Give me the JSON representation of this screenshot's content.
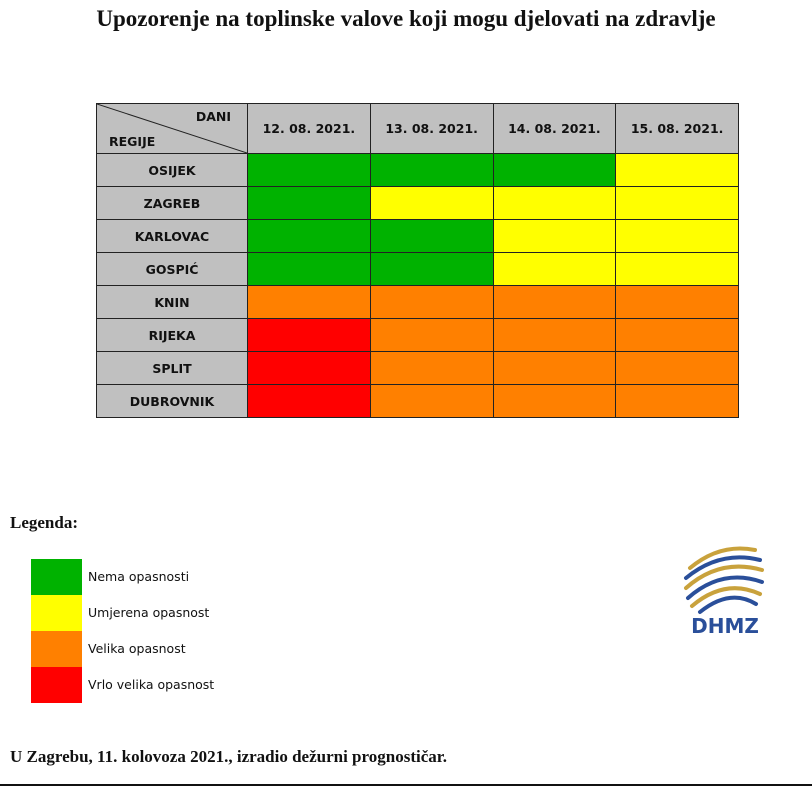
{
  "title": "Upozorenje na toplinske valove koji mogu djelovati na zdravlje",
  "table": {
    "corner_top": "DANI",
    "corner_bottom": "REGIJE",
    "columns": [
      "12. 08. 2021.",
      "13. 08. 2021.",
      "14. 08. 2021.",
      "15. 08. 2021."
    ],
    "rows": [
      {
        "region": "OSIJEK",
        "levels": [
          0,
          0,
          0,
          1
        ]
      },
      {
        "region": "ZAGREB",
        "levels": [
          0,
          1,
          1,
          1
        ]
      },
      {
        "region": "KARLOVAC",
        "levels": [
          0,
          0,
          1,
          1
        ]
      },
      {
        "region": "GOSPIĆ",
        "levels": [
          0,
          0,
          1,
          1
        ]
      },
      {
        "region": "KNIN",
        "levels": [
          2,
          2,
          2,
          2
        ]
      },
      {
        "region": "RIJEKA",
        "levels": [
          3,
          2,
          2,
          2
        ]
      },
      {
        "region": "SPLIT",
        "levels": [
          3,
          2,
          2,
          2
        ]
      },
      {
        "region": "DUBROVNIK",
        "levels": [
          3,
          2,
          2,
          2
        ]
      }
    ]
  },
  "legend": {
    "title": "Legenda:",
    "items": [
      {
        "label": "Nema opasnosti",
        "color": "#00b200"
      },
      {
        "label": "Umjerena opasnost",
        "color": "#ffff00"
      },
      {
        "label": "Velika opasnost",
        "color": "#ff8000"
      },
      {
        "label": "Vrlo velika opasnost",
        "color": "#ff0000"
      }
    ]
  },
  "logo": "DHMZ",
  "footer": "U Zagrebu, 11. kolovoza 2021., izradio dežurni prognostičar."
}
